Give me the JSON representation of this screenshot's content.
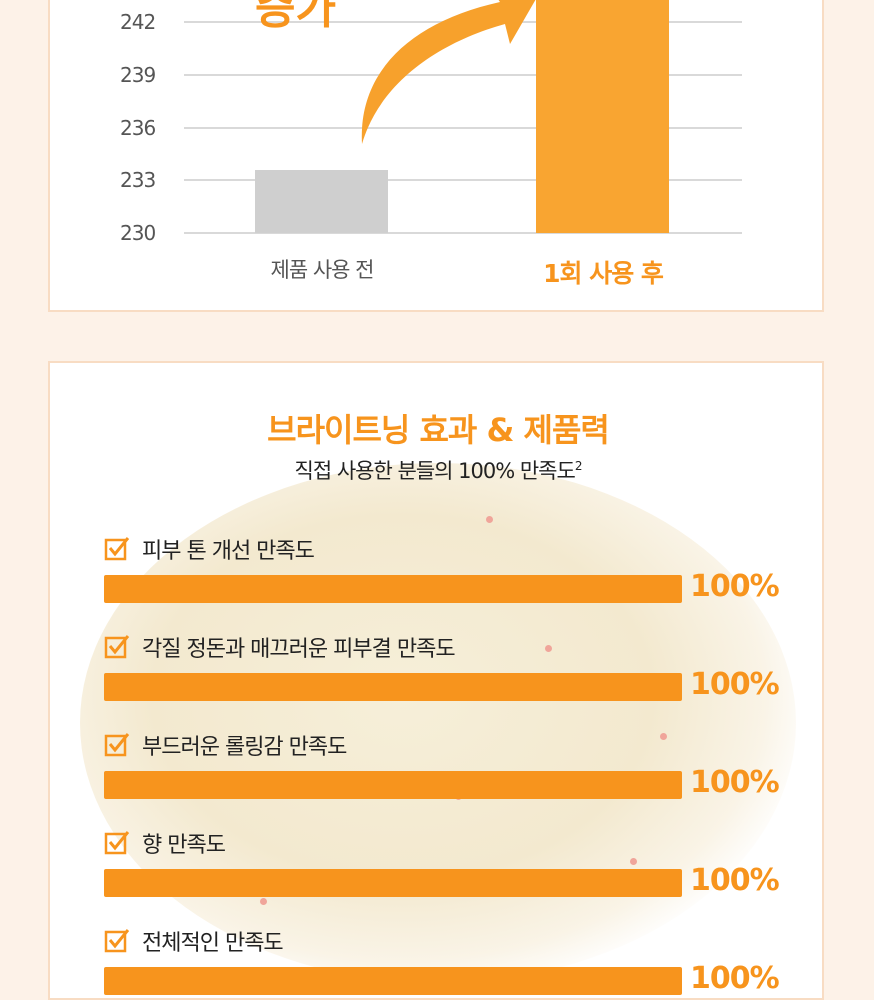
{
  "chart_data": {
    "type": "bar",
    "title": "",
    "annotation": "증가",
    "categories": [
      "제품 사용 전",
      "1회 사용 후"
    ],
    "values": [
      233.6,
      245
    ],
    "colors": [
      "#cfcfcf",
      "#f9a531"
    ],
    "label_colors": [
      "#555555",
      "#f7941d"
    ],
    "yticks": [
      230,
      233,
      236,
      239,
      242
    ],
    "ylim": [
      230,
      243.5
    ],
    "grid": true
  },
  "satisfaction": {
    "title": "브라이트닝 효과 & 제품력",
    "subtitle": "직접 사용한 분들의 100% 만족도",
    "subtitle_sup": "2",
    "items": [
      {
        "label": "피부 톤 개선 만족도",
        "value": 100,
        "value_label": "100%"
      },
      {
        "label": "각질 정돈과 매끄러운 피부결 만족도",
        "value": 100,
        "value_label": "100%"
      },
      {
        "label": "부드러운 롤링감 만족도",
        "value": 100,
        "value_label": "100%"
      },
      {
        "label": "향 만족도",
        "value": 100,
        "value_label": "100%"
      },
      {
        "label": "전체적인 만족도",
        "value": 100,
        "value_label": "100%"
      }
    ],
    "accent": "#f7941d"
  }
}
